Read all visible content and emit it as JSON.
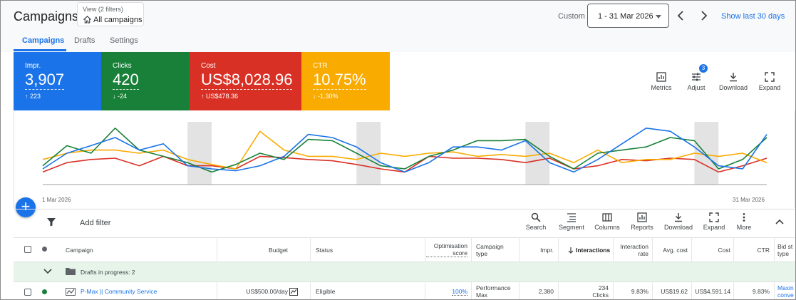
{
  "header": {
    "title": "Campaigns",
    "view_filters": "View (2 filters)",
    "view_name": "All campaigns",
    "custom_label": "Custom",
    "date_range": "1 - 31 Mar 2026",
    "show_last": "Show last 30 days"
  },
  "tabs": [
    {
      "label": "Campaigns",
      "active": true
    },
    {
      "label": "Drafts",
      "active": false
    },
    {
      "label": "Settings",
      "active": false
    }
  ],
  "metrics": [
    {
      "name": "Impr.",
      "value": "3,907",
      "delta": "↑ 223",
      "color": "#1a73e8"
    },
    {
      "name": "Clicks",
      "value": "420",
      "delta": "↓ -24",
      "color": "#188038"
    },
    {
      "name": "Cost",
      "value": "US$8,028.96",
      "delta": "↑ US$478.36",
      "color": "#d93025"
    },
    {
      "name": "CTR",
      "value": "10.75%",
      "delta": "↓ -1.30%",
      "color": "#f9ab00"
    }
  ],
  "chart_toolbar": {
    "metrics": "Metrics",
    "adjust": "Adjust",
    "adjust_badge": "3",
    "download": "Download",
    "expand": "Expand"
  },
  "chart_data": {
    "type": "line",
    "x_start_label": "1 Mar 2026",
    "x_end_label": "31 Mar 2026",
    "x": [
      1,
      2,
      3,
      4,
      5,
      6,
      7,
      8,
      9,
      10,
      11,
      12,
      13,
      14,
      15,
      16,
      17,
      18,
      19,
      20,
      21,
      22,
      23,
      24,
      25,
      26,
      27,
      28,
      29,
      30,
      31
    ],
    "weekend_bands": [
      [
        7,
        8
      ],
      [
        14,
        15
      ],
      [
        21,
        22
      ],
      [
        28,
        29
      ]
    ],
    "series": [
      {
        "color": "#1a73e8",
        "values": [
          0.25,
          0.5,
          0.62,
          0.75,
          0.55,
          0.65,
          0.3,
          0.25,
          0.22,
          0.3,
          0.45,
          0.8,
          0.75,
          0.6,
          0.35,
          0.2,
          0.35,
          0.6,
          0.6,
          0.55,
          0.7,
          0.35,
          0.2,
          0.4,
          0.65,
          0.9,
          0.85,
          0.6,
          0.3,
          0.25,
          0.8
        ]
      },
      {
        "color": "#188038",
        "values": [
          0.3,
          0.62,
          0.5,
          0.9,
          0.55,
          0.45,
          0.35,
          0.2,
          0.32,
          0.5,
          0.4,
          0.72,
          0.7,
          0.5,
          0.3,
          0.25,
          0.45,
          0.55,
          0.7,
          0.7,
          0.72,
          0.45,
          0.25,
          0.5,
          0.55,
          0.6,
          0.75,
          0.7,
          0.25,
          0.4,
          0.75
        ]
      },
      {
        "color": "#d93025",
        "values": [
          0.2,
          0.35,
          0.4,
          0.42,
          0.3,
          0.45,
          0.3,
          0.3,
          0.25,
          0.45,
          0.43,
          0.4,
          0.38,
          0.32,
          0.25,
          0.2,
          0.45,
          0.42,
          0.42,
          0.4,
          0.35,
          0.42,
          0.25,
          0.3,
          0.4,
          0.38,
          0.42,
          0.4,
          0.2,
          0.3,
          0.42
        ]
      },
      {
        "color": "#f9ab00",
        "values": [
          0.4,
          0.5,
          0.55,
          0.55,
          0.5,
          0.55,
          0.4,
          0.32,
          0.25,
          0.85,
          0.55,
          0.45,
          0.45,
          0.4,
          0.5,
          0.45,
          0.5,
          0.52,
          0.45,
          0.48,
          0.45,
          0.5,
          0.35,
          0.55,
          0.35,
          0.4,
          0.4,
          0.5,
          0.45,
          0.5,
          0.35
        ]
      }
    ]
  },
  "table_toolbar": {
    "add_filter": "Add filter",
    "search": "Search",
    "segment": "Segment",
    "columns": "Columns",
    "reports": "Reports",
    "download": "Download",
    "expand": "Expand",
    "more": "More"
  },
  "table": {
    "headers": {
      "campaign": "Campaign",
      "budget": "Budget",
      "status": "Status",
      "opt_score": "Optimisation score",
      "campaign_type": "Campaign type",
      "impr": "Impr.",
      "interactions": "Interactions",
      "interaction_rate": "Interaction rate",
      "avg_cost": "Avg. cost",
      "cost": "Cost",
      "ctr": "CTR",
      "bid_strategy": "Bid st type"
    },
    "drafts_row": "Drafts in progress: 2",
    "rows": [
      {
        "campaign": "P-Max || Community Service",
        "budget": "US$500.00/day",
        "status": "Eligible",
        "opt_score": "100%",
        "campaign_type": "Performance Max",
        "impr": "2,380",
        "interactions_value": "234",
        "interactions_unit": "Clicks",
        "interaction_rate": "9.83%",
        "avg_cost": "US$19.62",
        "cost": "US$4,591.14",
        "ctr": "9.83%",
        "bid_strategy": "Maxin conve"
      }
    ]
  }
}
